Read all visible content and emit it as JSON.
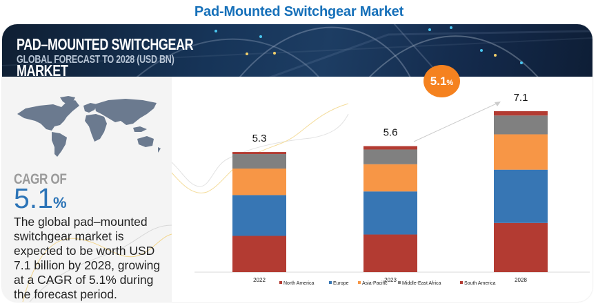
{
  "page": {
    "title": "Pad-Mounted Switchgear Market"
  },
  "banner": {
    "title_line1": "PAD–MOUNTED SWITCHGEAR",
    "title_line2": "MARKET",
    "subtitle": "GLOBAL FORECAST TO 2028 (USD BN)"
  },
  "left_panel": {
    "cagr_label": "CAGR OF",
    "cagr_number": "5.1",
    "cagr_suffix": "%",
    "description": "The global pad–mounted switchgear market is expected to be worth USD 7.1 billion by 2028, growing at a CAGR of 5.1% during the forecast period."
  },
  "growth_bubble": {
    "number": "5.1",
    "suffix": "%"
  },
  "colors": {
    "title_blue": "#1670b9",
    "cagr_blue": "#2c74b7",
    "bubble_orange": "#f5821f",
    "map_gray": "#6b7a8f"
  },
  "chart_data": {
    "type": "bar",
    "stacked": true,
    "title": "Global Forecast to 2028 (USD BN)",
    "xlabel": "",
    "ylabel": "USD BN",
    "ylim": [
      0,
      7.1
    ],
    "grid": false,
    "legend_position": "bottom",
    "categories": [
      "2022",
      "2023",
      "2028"
    ],
    "totals": [
      "5.3",
      "5.6",
      "7.1"
    ],
    "series": [
      {
        "name": "North America",
        "color": "#b33b32",
        "values": [
          1.6,
          1.66,
          2.17
        ]
      },
      {
        "name": "Europe",
        "color": "#3776b4",
        "values": [
          1.8,
          1.9,
          2.35
        ]
      },
      {
        "name": "Asia-Pacific",
        "color": "#f79646",
        "values": [
          1.17,
          1.2,
          1.56
        ]
      },
      {
        "name": "Middle-East Africa",
        "color": "#808080",
        "values": [
          0.64,
          0.65,
          0.83
        ]
      },
      {
        "name": "South America",
        "color": "#b33b32",
        "values": [
          0.09,
          0.15,
          0.19
        ]
      }
    ]
  }
}
